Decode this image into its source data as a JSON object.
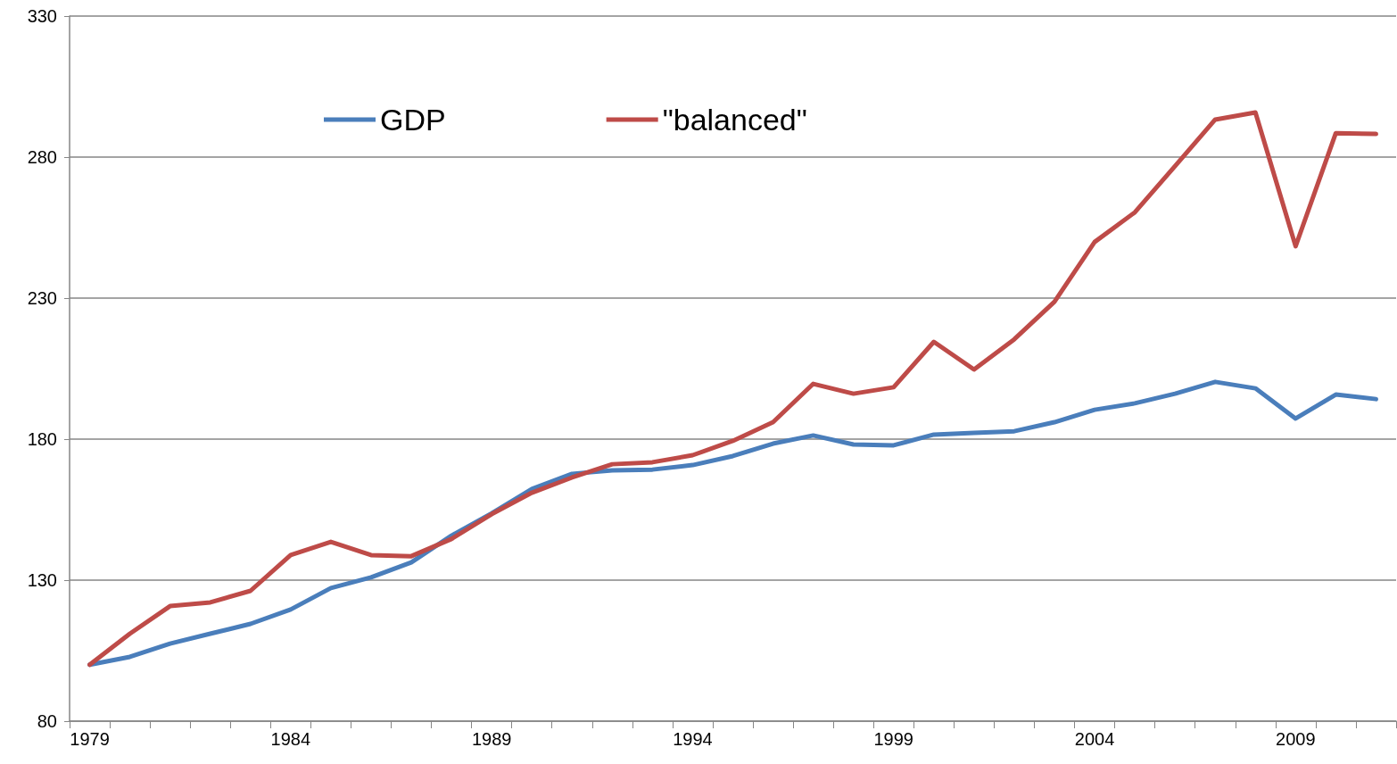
{
  "chart_data": {
    "type": "line",
    "categories": [
      "1979",
      null,
      null,
      null,
      null,
      "1984",
      null,
      null,
      null,
      null,
      "1989",
      null,
      null,
      null,
      null,
      "1994",
      null,
      null,
      null,
      null,
      "1999",
      null,
      null,
      null,
      null,
      "2004",
      null,
      null,
      null,
      null,
      "2009",
      null,
      null
    ],
    "series": [
      {
        "name": "GDP",
        "color": "#4a7ebb",
        "values": [
          100,
          102.8,
          107.5,
          111,
          114.5,
          119.6,
          127.2,
          131,
          136.3,
          145.8,
          153.7,
          162.3,
          167.7,
          168.9,
          169.2,
          170.8,
          174,
          178.4,
          181.3,
          178.1,
          177.8,
          181.6,
          182.2,
          182.8,
          186,
          190.4,
          192.7,
          196.1,
          200.3,
          198,
          187.3,
          195.8,
          194.2
        ]
      },
      {
        "name": "\"balanced\"",
        "color": "#be4b48",
        "values": [
          100,
          111,
          120.8,
          122.1,
          126.2,
          138.9,
          143.6,
          138.9,
          138.5,
          144.6,
          153.4,
          161,
          166.4,
          171.1,
          171.8,
          174.3,
          179.4,
          186,
          199.6,
          196.1,
          198.4,
          214.5,
          204.7,
          215.4,
          228.7,
          249.9,
          260.4,
          276.8,
          293.3,
          295.8,
          248.4,
          288.5,
          288.2
        ]
      }
    ],
    "ylim": [
      80,
      330
    ],
    "yticks": [
      80,
      130,
      180,
      230,
      280,
      330
    ],
    "grid": "y",
    "legend": "top left",
    "marker": "none",
    "line_style": "solid"
  }
}
